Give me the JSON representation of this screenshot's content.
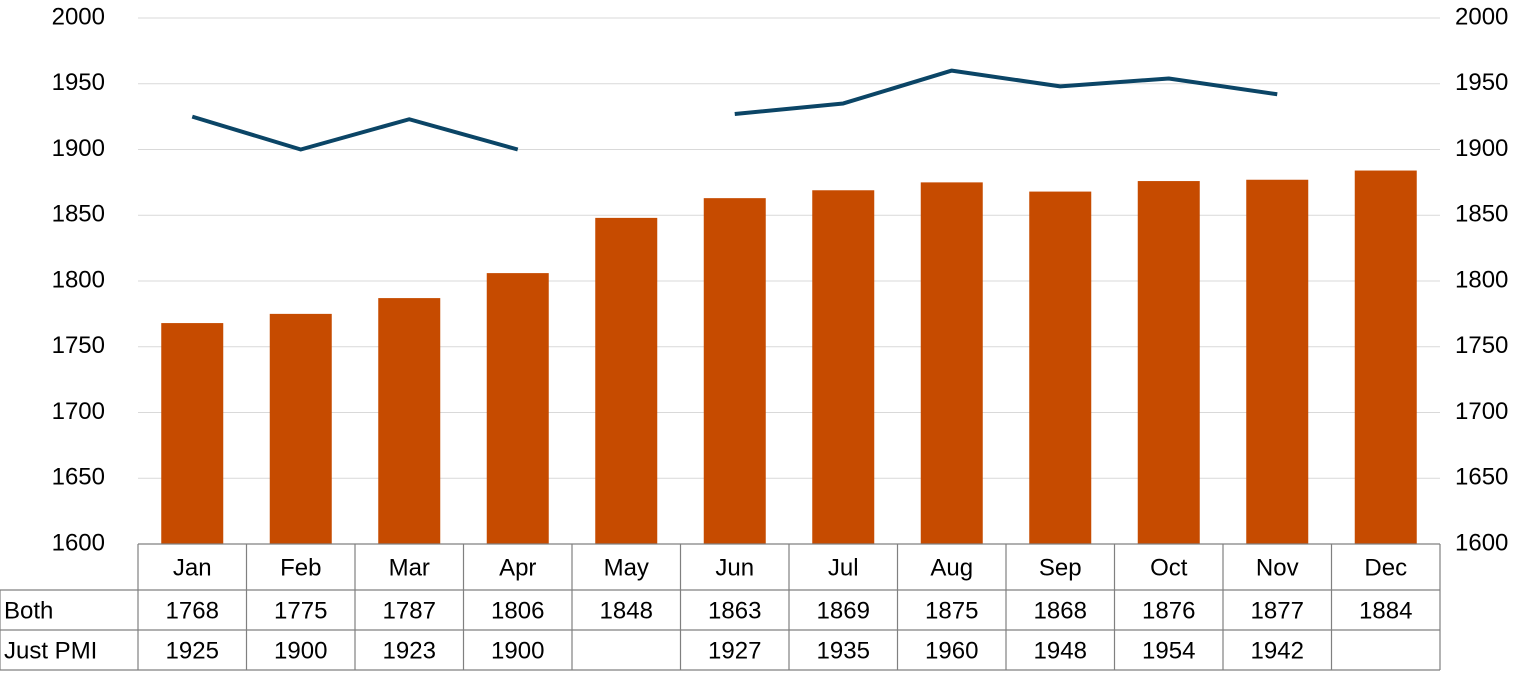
{
  "chart_data": {
    "type": "combo",
    "categories": [
      "Jan",
      "Feb",
      "Mar",
      "Apr",
      "May",
      "Jun",
      "Jul",
      "Aug",
      "Sep",
      "Oct",
      "Nov",
      "Dec"
    ],
    "series": [
      {
        "name": "Both",
        "type": "bar",
        "color": "#c64b00",
        "axis": "y",
        "values": [
          1768,
          1775,
          1787,
          1806,
          1848,
          1863,
          1869,
          1875,
          1868,
          1876,
          1877,
          1884
        ]
      },
      {
        "name": "Just PMI",
        "type": "line",
        "color": "#0b4566",
        "axis": "y2",
        "values": [
          1925,
          1900,
          1923,
          1900,
          null,
          1927,
          1935,
          1960,
          1948,
          1954,
          1942,
          null
        ]
      }
    ],
    "ylim": [
      1600,
      2000
    ],
    "yticks": [
      1600,
      1650,
      1700,
      1750,
      1800,
      1850,
      1900,
      1950,
      2000
    ],
    "y2lim": [
      1600,
      2000
    ],
    "y2ticks": [
      1600,
      1650,
      1700,
      1750,
      1800,
      1850,
      1900,
      1950,
      2000
    ],
    "grid": true,
    "data_table": true
  }
}
